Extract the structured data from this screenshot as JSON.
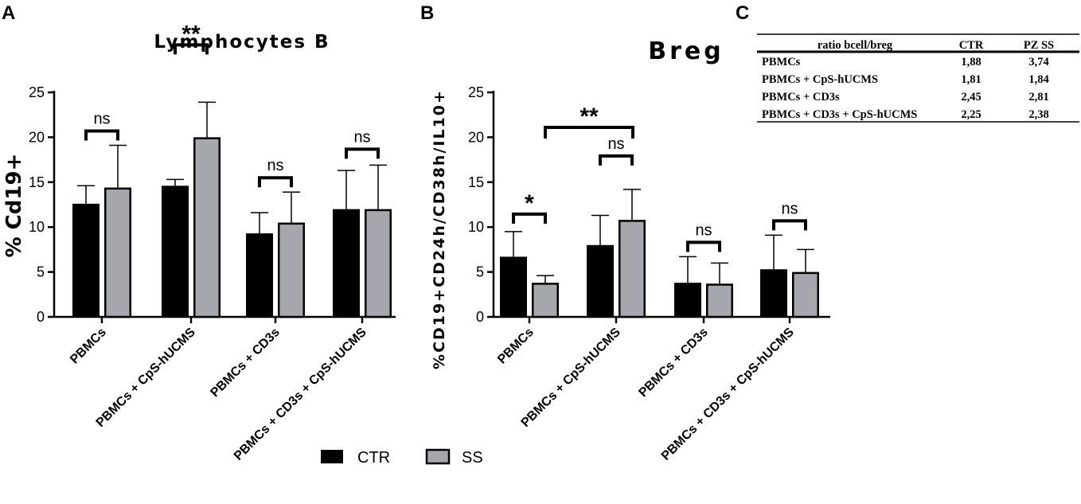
{
  "panel_labels": [
    "A",
    "B",
    "C"
  ],
  "legend": {
    "ctr_label": "CTR",
    "ss_label": "SS",
    "ctr_color": "#000000",
    "ss_color": "#a6a6ad"
  },
  "chart_data": [
    {
      "type": "bar",
      "panel": "A",
      "title": "Lymphocytes B",
      "ylabel": "% Cd19+",
      "ylim": [
        0,
        25
      ],
      "yticks": [
        0,
        5,
        10,
        15,
        20,
        25
      ],
      "categories": [
        "PBMCs",
        "PBMCs + CpS-hUCMS",
        "PBMCs + CD3s",
        "PBMCs + CD3s + CpS-hUCMS"
      ],
      "series": [
        {
          "name": "CTR",
          "values": [
            12.6,
            14.6,
            9.3,
            12.0
          ],
          "errors": [
            2.0,
            0.7,
            2.3,
            4.3
          ]
        },
        {
          "name": "SS",
          "values": [
            14.4,
            20.0,
            10.5,
            12.0
          ],
          "errors": [
            4.7,
            3.9,
            3.4,
            4.9
          ]
        }
      ],
      "significance": [
        {
          "category": 0,
          "label": "ns"
        },
        {
          "category": 1,
          "label": "**"
        },
        {
          "category": 2,
          "label": "ns"
        },
        {
          "category": 3,
          "label": "ns"
        }
      ]
    },
    {
      "type": "bar",
      "panel": "B",
      "title": "Breg",
      "ylabel": "%CD19+CD24h/CD38h/IL10+",
      "ylim": [
        0,
        25
      ],
      "yticks": [
        0,
        5,
        10,
        15,
        20,
        25
      ],
      "categories": [
        "PBMCs",
        "PBMCs + CpS-hUCMS",
        "PBMCs + CD3s",
        "PBMCs + CD3s + CpS-hUCMS"
      ],
      "series": [
        {
          "name": "CTR",
          "values": [
            6.7,
            8.0,
            3.8,
            5.3
          ],
          "errors": [
            2.8,
            3.3,
            2.9,
            3.8
          ]
        },
        {
          "name": "SS",
          "values": [
            3.8,
            10.8,
            3.7,
            5.0
          ],
          "errors": [
            0.8,
            3.4,
            2.3,
            2.5
          ]
        }
      ],
      "significance": [
        {
          "category": 0,
          "label": "*"
        },
        {
          "category": 1,
          "label": "ns"
        },
        {
          "category": 2,
          "label": "ns"
        },
        {
          "category": 3,
          "label": "ns"
        },
        {
          "from": "SS PBMCs",
          "to": "SS PBMCs + CpS-hUCMS",
          "label": "**"
        }
      ]
    },
    {
      "type": "table",
      "panel": "C",
      "columns": [
        "ratio bcell/breg",
        "CTR",
        "PZ SS"
      ],
      "rows": [
        [
          "PBMCs",
          "1,88",
          "3,74"
        ],
        [
          "PBMCs + CpS-hUCMS",
          "1,81",
          "1,84"
        ],
        [
          "PBMCs + CD3s",
          "2,45",
          "2,81"
        ],
        [
          "PBMCs + CD3s + CpS-hUCMS",
          "2,25",
          "2,38"
        ]
      ]
    }
  ]
}
